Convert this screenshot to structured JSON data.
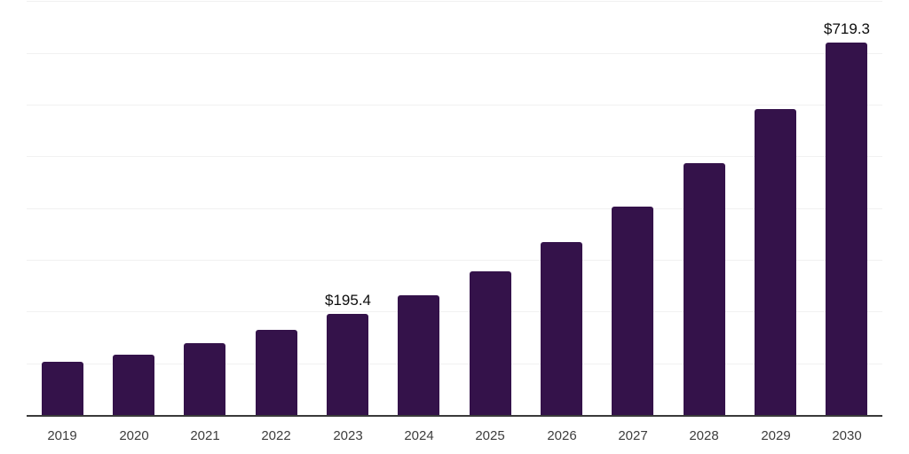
{
  "chart_data": {
    "type": "bar",
    "title": "",
    "xlabel": "",
    "ylabel": "",
    "categories": [
      "2019",
      "2020",
      "2021",
      "2022",
      "2023",
      "2024",
      "2025",
      "2026",
      "2027",
      "2028",
      "2029",
      "2030"
    ],
    "values": [
      103,
      117,
      138,
      164,
      195.4,
      231,
      278,
      334,
      402,
      486,
      592,
      719.3
    ],
    "data_labels": [
      {
        "category": "2023",
        "text": "$195.4"
      },
      {
        "category": "2030",
        "text": "$719.3"
      }
    ],
    "ylim": [
      0,
      800
    ],
    "gridline_step": 100,
    "grid": "horizontal",
    "y_axis_tick_labels_visible": false,
    "legend": "none",
    "colors": {
      "bar": "#34124a",
      "axis_line": "#3a3a3a",
      "gridline": "#f1f1f1",
      "category_label": "#3d3d3d",
      "value_label": "#0d0d0d",
      "background": "#ffffff"
    }
  }
}
